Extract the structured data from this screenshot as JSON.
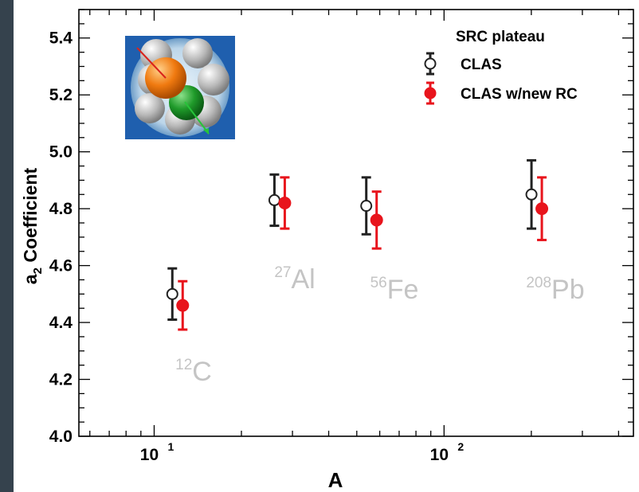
{
  "chart_data": {
    "type": "scatter",
    "xlabel": "A",
    "ylabel": "a",
    "ylabel_sub": "2",
    "ylabel_rest": " Coefficient",
    "xscale": "log",
    "xlim": [
      5.5,
      450
    ],
    "ylim": [
      4.0,
      5.5
    ],
    "yticks": [
      4.0,
      4.2,
      4.4,
      4.6,
      4.8,
      5.0,
      5.2,
      5.4
    ],
    "ytick_labels": [
      "4.0",
      "4.2",
      "4.4",
      "4.6",
      "4.8",
      "5.0",
      "5.2",
      "5.4"
    ],
    "xticks": [
      {
        "value": 10,
        "base": "10",
        "exp": "1"
      },
      {
        "value": 100,
        "base": "10",
        "exp": "2"
      }
    ],
    "legend": {
      "title": "SRC plateau",
      "placement": "top-right"
    },
    "series": [
      {
        "name": "CLAS",
        "marker": "open-circle",
        "color": "#222222",
        "points": [
          {
            "x": 12,
            "y": 4.5,
            "err": 0.09
          },
          {
            "x": 27,
            "y": 4.83,
            "err": 0.09
          },
          {
            "x": 56,
            "y": 4.81,
            "err": 0.1
          },
          {
            "x": 208,
            "y": 4.85,
            "err": 0.12
          }
        ]
      },
      {
        "name": "CLAS w/new RC",
        "marker": "filled-circle",
        "color": "#e8141c",
        "points": [
          {
            "x": 12,
            "y": 4.46,
            "err": 0.085
          },
          {
            "x": 27,
            "y": 4.82,
            "err": 0.09
          },
          {
            "x": 56,
            "y": 4.76,
            "err": 0.1
          },
          {
            "x": 208,
            "y": 4.8,
            "err": 0.11
          }
        ]
      }
    ],
    "nucleus_labels": [
      {
        "mass": "12",
        "symbol": "C"
      },
      {
        "mass": "27",
        "symbol": "Al"
      },
      {
        "mass": "56",
        "symbol": "Fe"
      },
      {
        "mass": "208",
        "symbol": "Pb"
      }
    ]
  },
  "colors": {
    "background": "#35424d",
    "plot_background": "#ffffff",
    "clas": "#222222",
    "clas_new_rc": "#e8141c",
    "nucleus_label": "#c4c4c4",
    "inset_bg": "#1f5fae"
  },
  "inset_icon": "nucleon-pair-icon"
}
